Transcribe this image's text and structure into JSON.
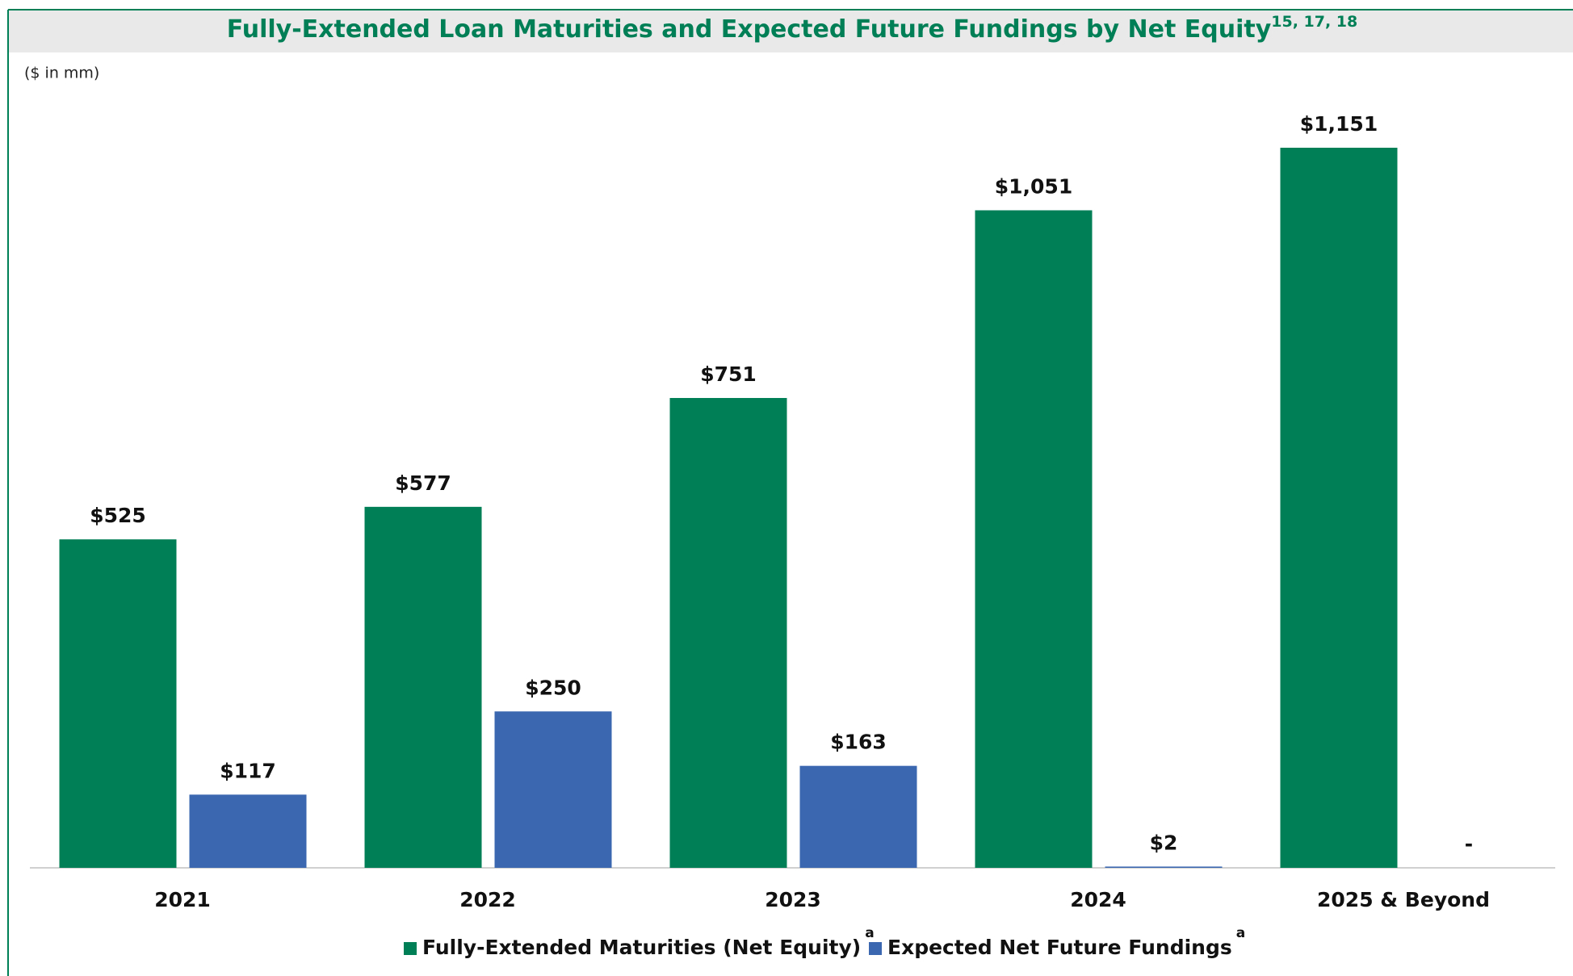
{
  "chart_data": {
    "type": "bar",
    "title": "Fully-Extended Loan Maturities and Expected Future Fundings by Net Equity",
    "title_note": "15, 17, 18",
    "subtitle": "($ in mm)",
    "categories": [
      "2021",
      "2022",
      "2023",
      "2024",
      "2025 & Beyond"
    ],
    "series": [
      {
        "name": "Fully-Extended Maturities (Net Equity)",
        "note": "a",
        "color": "#007f56",
        "values": [
          525,
          577,
          751,
          1051,
          1151
        ],
        "value_labels": [
          "$525",
          "$577",
          "$751",
          "$1,051",
          "$1,151"
        ]
      },
      {
        "name": "Expected Net Future Fundings",
        "note": "a",
        "color": "#3a67b0",
        "values": [
          117,
          250,
          163,
          2,
          0
        ],
        "value_labels": [
          "$117",
          "$250",
          "$163",
          "$2",
          "-"
        ]
      }
    ]
  }
}
